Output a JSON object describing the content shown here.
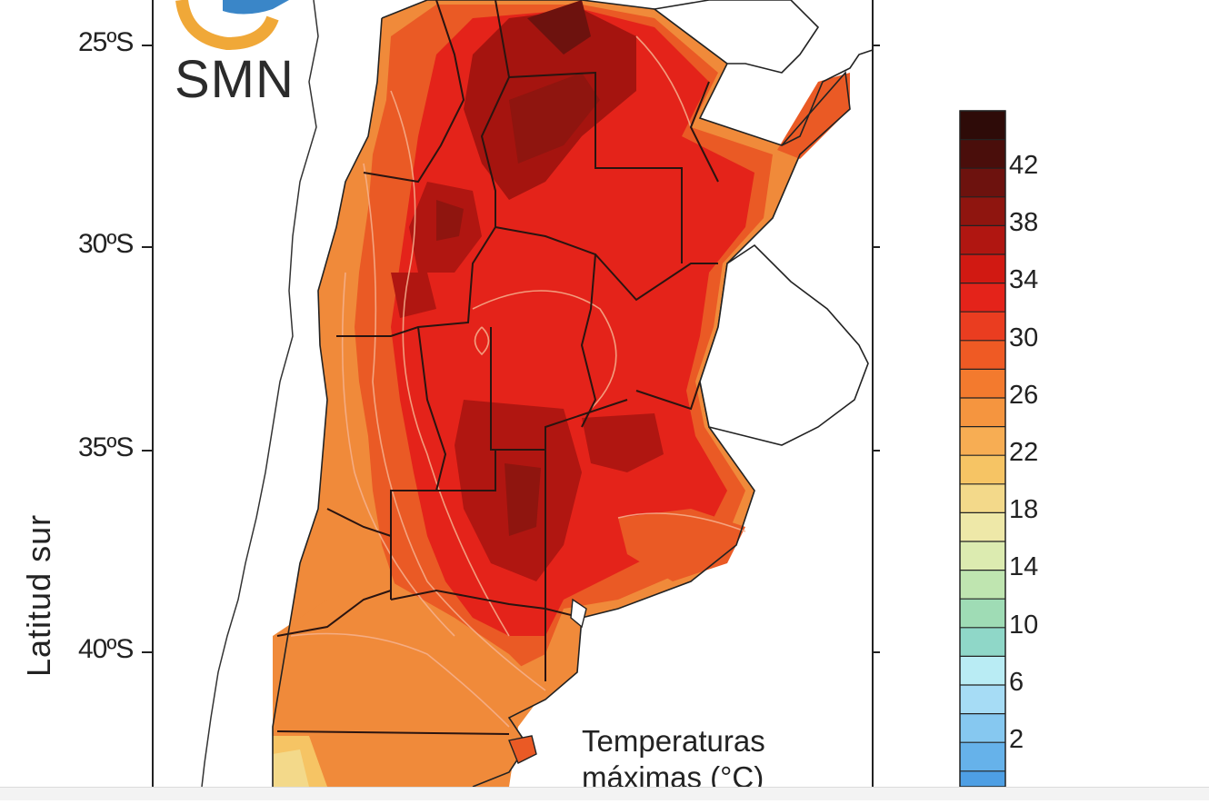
{
  "map": {
    "yaxis_label": "Latitud sur",
    "lat_ticks": [
      {
        "label": "25ºS"
      },
      {
        "label": "30ºS"
      },
      {
        "label": "35ºS"
      },
      {
        "label": "40ºS"
      }
    ],
    "logo_text": "SMN",
    "title_line1": "Temperaturas",
    "title_line2": "máximas (°C)"
  },
  "colorbar": {
    "labels": [
      "42",
      "38",
      "34",
      "30",
      "26",
      "22",
      "18",
      "14",
      "10",
      "6",
      "2"
    ],
    "colors": [
      "#2e0b08",
      "#4a0e0b",
      "#6d120e",
      "#8f150f",
      "#b01611",
      "#d11912",
      "#e4231a",
      "#ea3d20",
      "#ef5a24",
      "#f37a2e",
      "#f5953f",
      "#f7ad53",
      "#f6c464",
      "#f3d98a",
      "#eee8a8",
      "#dcebb0",
      "#bfe5b0",
      "#9fdcb5",
      "#8fd7c8",
      "#b9ecf4",
      "#a6dcf5",
      "#86c8f0",
      "#66b2ea",
      "#4e9fe4",
      "#3f8bdb"
    ]
  },
  "colors": {
    "hot": "#c01510",
    "frame": "#111111"
  }
}
